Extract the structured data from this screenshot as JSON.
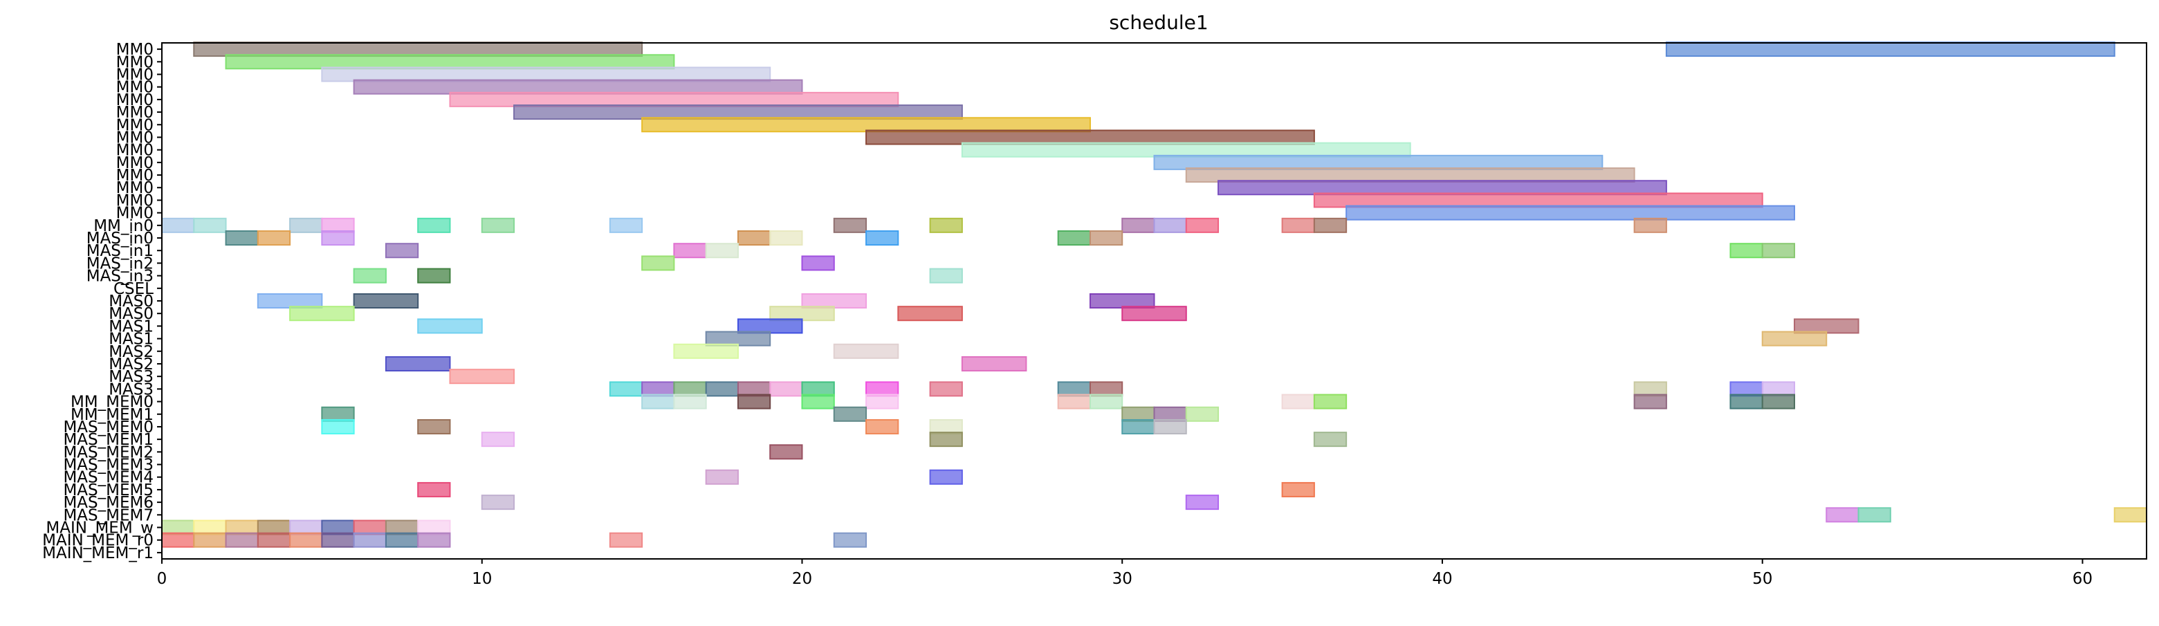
{
  "chart_data": {
    "type": "gantt",
    "title": "schedule1",
    "xlim": [
      0,
      62
    ],
    "xticks": [
      0,
      10,
      20,
      30,
      40,
      50,
      60
    ],
    "rows": [
      "MM0",
      "MM0",
      "MM0",
      "MM0",
      "MM0",
      "MM0",
      "MM0",
      "MM0",
      "MM0",
      "MM0",
      "MM0",
      "MM0",
      "MM0",
      "MM0",
      "MM_in0",
      "MAS_in0",
      "MAS_in1",
      "MAS_in2",
      "MAS_in3",
      "CSEL",
      "MAS0",
      "MAS0",
      "MAS1",
      "MAS1",
      "MAS2",
      "MAS2",
      "MAS3",
      "MAS3",
      "MM_MEM0",
      "MM_MEM1",
      "MAS_MEM0",
      "MAS_MEM1",
      "MAS_MEM2",
      "MAS_MEM3",
      "MAS_MEM4",
      "MAS_MEM5",
      "MAS_MEM6",
      "MAS_MEM7",
      "MAIN_MEM_w",
      "MAIN_MEM_r0",
      "MAIN_MEM_r1"
    ],
    "bars": [
      {
        "row": 0,
        "start": 1,
        "end": 15,
        "color": "#8a7a70"
      },
      {
        "row": 0,
        "start": 47,
        "end": 61,
        "color": "#5b8ad6"
      },
      {
        "row": 1,
        "start": 2,
        "end": 16,
        "color": "#7fe06e"
      },
      {
        "row": 2,
        "start": 5,
        "end": 19,
        "color": "#c8cce8"
      },
      {
        "row": 3,
        "start": 6,
        "end": 20,
        "color": "#a57fb8"
      },
      {
        "row": 4,
        "start": 9,
        "end": 23,
        "color": "#f591b4"
      },
      {
        "row": 5,
        "start": 11,
        "end": 25,
        "color": "#7a70a8"
      },
      {
        "row": 6,
        "start": 15,
        "end": 29,
        "color": "#e8bc2a"
      },
      {
        "row": 7,
        "start": 22,
        "end": 36,
        "color": "#8b4a3a"
      },
      {
        "row": 8,
        "start": 25,
        "end": 39,
        "color": "#b0f0d0"
      },
      {
        "row": 9,
        "start": 31,
        "end": 45,
        "color": "#7fb0e8"
      },
      {
        "row": 10,
        "start": 32,
        "end": 46,
        "color": "#c8a898"
      },
      {
        "row": 11,
        "start": 33,
        "end": 47,
        "color": "#7a50c0"
      },
      {
        "row": 12,
        "start": 36,
        "end": 50,
        "color": "#ef6382"
      },
      {
        "row": 13,
        "start": 37,
        "end": 51,
        "color": "#6890e6"
      },
      {
        "row": 14,
        "start": 0,
        "end": 1,
        "color": "#a8c8e8"
      },
      {
        "row": 14,
        "start": 1,
        "end": 2,
        "color": "#a0dcd8"
      },
      {
        "row": 14,
        "start": 4,
        "end": 5,
        "color": "#a8c8d8"
      },
      {
        "row": 14,
        "start": 5,
        "end": 6,
        "color": "#f0a0e8"
      },
      {
        "row": 14,
        "start": 8,
        "end": 9,
        "color": "#50e0b0"
      },
      {
        "row": 14,
        "start": 10,
        "end": 11,
        "color": "#88d898"
      },
      {
        "row": 14,
        "start": 14,
        "end": 15,
        "color": "#98c8f0"
      },
      {
        "row": 14,
        "start": 21,
        "end": 22,
        "color": "#907070"
      },
      {
        "row": 14,
        "start": 24,
        "end": 25,
        "color": "#b0c040"
      },
      {
        "row": 14,
        "start": 30,
        "end": 31,
        "color": "#a870a8"
      },
      {
        "row": 14,
        "start": 31,
        "end": 32,
        "color": "#a898e0"
      },
      {
        "row": 14,
        "start": 32,
        "end": 33,
        "color": "#f06080"
      },
      {
        "row": 14,
        "start": 35,
        "end": 36,
        "color": "#e07878"
      },
      {
        "row": 14,
        "start": 36,
        "end": 37,
        "color": "#a07060"
      },
      {
        "row": 14,
        "start": 46,
        "end": 47,
        "color": "#d09070"
      },
      {
        "row": 15,
        "start": 2,
        "end": 3,
        "color": "#508888"
      },
      {
        "row": 15,
        "start": 3,
        "end": 4,
        "color": "#e0a050"
      },
      {
        "row": 15,
        "start": 5,
        "end": 6,
        "color": "#c890f0"
      },
      {
        "row": 15,
        "start": 18,
        "end": 19,
        "color": "#d09050"
      },
      {
        "row": 15,
        "start": 19,
        "end": 20,
        "color": "#e8e8c0"
      },
      {
        "row": 15,
        "start": 22,
        "end": 23,
        "color": "#40a0f0"
      },
      {
        "row": 15,
        "start": 28,
        "end": 29,
        "color": "#50b060"
      },
      {
        "row": 15,
        "start": 29,
        "end": 30,
        "color": "#c09070"
      },
      {
        "row": 16,
        "start": 7,
        "end": 8,
        "color": "#9070b8"
      },
      {
        "row": 16,
        "start": 16,
        "end": 17,
        "color": "#e070d0"
      },
      {
        "row": 16,
        "start": 17,
        "end": 18,
        "color": "#d8e8d0"
      },
      {
        "row": 16,
        "start": 49,
        "end": 50,
        "color": "#70e060"
      },
      {
        "row": 16,
        "start": 50,
        "end": 51,
        "color": "#88c870"
      },
      {
        "row": 17,
        "start": 15,
        "end": 16,
        "color": "#98e070"
      },
      {
        "row": 17,
        "start": 20,
        "end": 21,
        "color": "#a050e0"
      },
      {
        "row": 18,
        "start": 6,
        "end": 7,
        "color": "#78e088"
      },
      {
        "row": 18,
        "start": 8,
        "end": 9,
        "color": "#408040"
      },
      {
        "row": 18,
        "start": 24,
        "end": 25,
        "color": "#a0e0d0"
      },
      {
        "row": 20,
        "start": 3,
        "end": 5,
        "color": "#80b0f0"
      },
      {
        "row": 20,
        "start": 6,
        "end": 8,
        "color": "#405870"
      },
      {
        "row": 20,
        "start": 20,
        "end": 22,
        "color": "#f0a0e0"
      },
      {
        "row": 20,
        "start": 29,
        "end": 31,
        "color": "#8040b8"
      },
      {
        "row": 21,
        "start": 4,
        "end": 6,
        "color": "#b0f080"
      },
      {
        "row": 21,
        "start": 19,
        "end": 21,
        "color": "#d8e0a0"
      },
      {
        "row": 21,
        "start": 23,
        "end": 25,
        "color": "#d85858"
      },
      {
        "row": 21,
        "start": 30,
        "end": 32,
        "color": "#d83888"
      },
      {
        "row": 22,
        "start": 8,
        "end": 10,
        "color": "#70d0f0"
      },
      {
        "row": 22,
        "start": 18,
        "end": 20,
        "color": "#4050e0"
      },
      {
        "row": 22,
        "start": 51,
        "end": 53,
        "color": "#b06870"
      },
      {
        "row": 23,
        "start": 17,
        "end": 19,
        "color": "#7088a8"
      },
      {
        "row": 23,
        "start": 50,
        "end": 52,
        "color": "#e0b870"
      },
      {
        "row": 24,
        "start": 16,
        "end": 18,
        "color": "#d8f8a0"
      },
      {
        "row": 24,
        "start": 21,
        "end": 23,
        "color": "#e0d0d0"
      },
      {
        "row": 25,
        "start": 7,
        "end": 9,
        "color": "#5050c8"
      },
      {
        "row": 25,
        "start": 25,
        "end": 27,
        "color": "#e070c0"
      },
      {
        "row": 26,
        "start": 9,
        "end": 11,
        "color": "#f89898"
      },
      {
        "row": 27,
        "start": 14,
        "end": 15,
        "color": "#50d8d8"
      },
      {
        "row": 27,
        "start": 15,
        "end": 16,
        "color": "#9060c8"
      },
      {
        "row": 27,
        "start": 16,
        "end": 17,
        "color": "#70a870"
      },
      {
        "row": 27,
        "start": 17,
        "end": 18,
        "color": "#507890"
      },
      {
        "row": 27,
        "start": 18,
        "end": 19,
        "color": "#a06080"
      },
      {
        "row": 27,
        "start": 19,
        "end": 20,
        "color": "#f0a0d8"
      },
      {
        "row": 27,
        "start": 20,
        "end": 21,
        "color": "#40c080"
      },
      {
        "row": 27,
        "start": 22,
        "end": 23,
        "color": "#f050e0"
      },
      {
        "row": 27,
        "start": 24,
        "end": 25,
        "color": "#e07088"
      },
      {
        "row": 27,
        "start": 28,
        "end": 29,
        "color": "#508898"
      },
      {
        "row": 27,
        "start": 29,
        "end": 30,
        "color": "#a06060"
      },
      {
        "row": 27,
        "start": 46,
        "end": 47,
        "color": "#c8c8a0"
      },
      {
        "row": 27,
        "start": 49,
        "end": 50,
        "color": "#7070f0"
      },
      {
        "row": 27,
        "start": 50,
        "end": 51,
        "color": "#d0b0f0"
      },
      {
        "row": 28,
        "start": 15,
        "end": 16,
        "color": "#a8d8e0"
      },
      {
        "row": 28,
        "start": 16,
        "end": 17,
        "color": "#d0e8d8"
      },
      {
        "row": 28,
        "start": 18,
        "end": 19,
        "color": "#704848"
      },
      {
        "row": 28,
        "start": 20,
        "end": 21,
        "color": "#60e870"
      },
      {
        "row": 28,
        "start": 22,
        "end": 23,
        "color": "#f8c0f0"
      },
      {
        "row": 28,
        "start": 28,
        "end": 29,
        "color": "#f0b8b0"
      },
      {
        "row": 28,
        "start": 29,
        "end": 30,
        "color": "#b8e8c0"
      },
      {
        "row": 28,
        "start": 35,
        "end": 36,
        "color": "#f0d8d8"
      },
      {
        "row": 28,
        "start": 36,
        "end": 37,
        "color": "#90e060"
      },
      {
        "row": 28,
        "start": 46,
        "end": 47,
        "color": "#906880"
      },
      {
        "row": 28,
        "start": 49,
        "end": 50,
        "color": "#407878"
      },
      {
        "row": 28,
        "start": 50,
        "end": 51,
        "color": "#507060"
      },
      {
        "row": 29,
        "start": 5,
        "end": 6,
        "color": "#509880"
      },
      {
        "row": 29,
        "start": 21,
        "end": 22,
        "color": "#608888"
      },
      {
        "row": 29,
        "start": 30,
        "end": 31,
        "color": "#90a070"
      },
      {
        "row": 29,
        "start": 31,
        "end": 32,
        "color": "#906898"
      },
      {
        "row": 29,
        "start": 32,
        "end": 33,
        "color": "#b8e898"
      },
      {
        "row": 30,
        "start": 5,
        "end": 6,
        "color": "#50f8f0"
      },
      {
        "row": 30,
        "start": 8,
        "end": 9,
        "color": "#987058"
      },
      {
        "row": 30,
        "start": 22,
        "end": 23,
        "color": "#f08858"
      },
      {
        "row": 30,
        "start": 24,
        "end": 25,
        "color": "#e0e8c8"
      },
      {
        "row": 30,
        "start": 30,
        "end": 31,
        "color": "#50a0a8"
      },
      {
        "row": 30,
        "start": 31,
        "end": 32,
        "color": "#b8b8c0"
      },
      {
        "row": 31,
        "start": 10,
        "end": 11,
        "color": "#e8b0f0"
      },
      {
        "row": 31,
        "start": 24,
        "end": 25,
        "color": "#909060"
      },
      {
        "row": 31,
        "start": 36,
        "end": 37,
        "color": "#a0b890"
      },
      {
        "row": 32,
        "start": 19,
        "end": 20,
        "color": "#985060"
      },
      {
        "row": 34,
        "start": 17,
        "end": 18,
        "color": "#d0a0d0"
      },
      {
        "row": 34,
        "start": 24,
        "end": 25,
        "color": "#6060e8"
      },
      {
        "row": 35,
        "start": 8,
        "end": 9,
        "color": "#e84878"
      },
      {
        "row": 35,
        "start": 35,
        "end": 36,
        "color": "#f07850"
      },
      {
        "row": 36,
        "start": 10,
        "end": 11,
        "color": "#c0b0d0"
      },
      {
        "row": 36,
        "start": 32,
        "end": 33,
        "color": "#b068f0"
      },
      {
        "row": 37,
        "start": 52,
        "end": 53,
        "color": "#d080e0"
      },
      {
        "row": 37,
        "start": 53,
        "end": 54,
        "color": "#70d0b0"
      },
      {
        "row": 37,
        "start": 61,
        "end": 62,
        "color": "#e8d068"
      },
      {
        "row": 38,
        "start": 0,
        "end": 1,
        "color": "#b8e090"
      },
      {
        "row": 38,
        "start": 1,
        "end": 2,
        "color": "#f8f090"
      },
      {
        "row": 38,
        "start": 2,
        "end": 3,
        "color": "#e8c070"
      },
      {
        "row": 38,
        "start": 3,
        "end": 4,
        "color": "#a88858"
      },
      {
        "row": 38,
        "start": 4,
        "end": 5,
        "color": "#c8b0e8"
      },
      {
        "row": 38,
        "start": 5,
        "end": 6,
        "color": "#5060a8"
      },
      {
        "row": 38,
        "start": 6,
        "end": 7,
        "color": "#e06070"
      },
      {
        "row": 38,
        "start": 7,
        "end": 8,
        "color": "#a08870"
      },
      {
        "row": 38,
        "start": 8,
        "end": 9,
        "color": "#f8d0f0"
      },
      {
        "row": 39,
        "start": 0,
        "end": 1,
        "color": "#f06868"
      },
      {
        "row": 39,
        "start": 1,
        "end": 2,
        "color": "#e0a060"
      },
      {
        "row": 39,
        "start": 2,
        "end": 3,
        "color": "#b07898"
      },
      {
        "row": 39,
        "start": 3,
        "end": 4,
        "color": "#c06060"
      },
      {
        "row": 39,
        "start": 4,
        "end": 5,
        "color": "#e88868"
      },
      {
        "row": 39,
        "start": 5,
        "end": 6,
        "color": "#705890"
      },
      {
        "row": 39,
        "start": 6,
        "end": 7,
        "color": "#9090d0"
      },
      {
        "row": 39,
        "start": 7,
        "end": 8,
        "color": "#507898"
      },
      {
        "row": 39,
        "start": 8,
        "end": 9,
        "color": "#b080c0"
      },
      {
        "row": 39,
        "start": 14,
        "end": 15,
        "color": "#f08888"
      },
      {
        "row": 39,
        "start": 21,
        "end": 22,
        "color": "#8098c8"
      }
    ]
  }
}
